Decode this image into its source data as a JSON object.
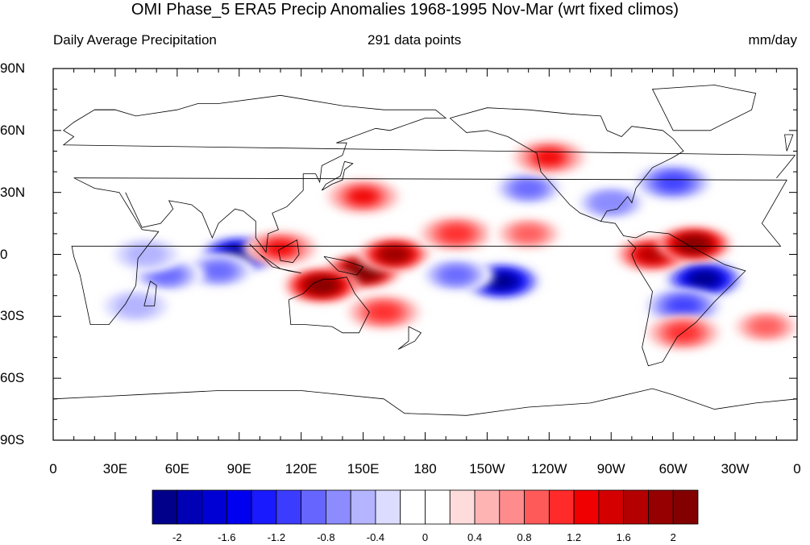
{
  "header": {
    "title": "OMI Phase_5 ERA5 Precip Anomalies 1968-1995 Nov-Mar (wrt fixed climos)",
    "left": "Daily Average Precipitation",
    "center": "291 data points",
    "right": "mm/day"
  },
  "map": {
    "projection": "cylindrical-equidistant",
    "center_longitude": 180,
    "lat_range": [
      -90,
      90
    ],
    "lon_range": [
      0,
      360
    ],
    "lat_labels": [
      "90N",
      "60N",
      "30N",
      "0",
      "30S",
      "60S",
      "90S"
    ],
    "lon_labels": [
      "0",
      "30E",
      "60E",
      "90E",
      "120E",
      "150E",
      "180",
      "150W",
      "120W",
      "90W",
      "60W",
      "30W",
      "0"
    ],
    "coastline_color": "#000000"
  },
  "colorbar": {
    "colors": [
      "#00008a",
      "#0000b4",
      "#0000d4",
      "#0000f0",
      "#1a1aff",
      "#3c3cff",
      "#6666ff",
      "#8c8cff",
      "#b4b4ff",
      "#dcdcff",
      "#ffffff",
      "#ffffff",
      "#ffdcdc",
      "#ffb4b4",
      "#ff8c8c",
      "#ff5a5a",
      "#ff2a2a",
      "#f00000",
      "#d40000",
      "#b40000",
      "#960000",
      "#820000"
    ],
    "tick_labels": [
      "-2",
      "-1.6",
      "-1.2",
      "-0.8",
      "-0.4",
      "0",
      "0.4",
      "0.8",
      "1.2",
      "1.6",
      "2"
    ]
  },
  "anomalies": {
    "description_units": "mm/day",
    "blobs": [
      {
        "lon": 90,
        "lat": 0,
        "value": -2.2
      },
      {
        "lon": 80,
        "lat": -8,
        "value": -1.0
      },
      {
        "lon": 55,
        "lat": -10,
        "value": -1.0
      },
      {
        "lon": 45,
        "lat": 0,
        "value": -0.6
      },
      {
        "lon": 40,
        "lat": -25,
        "value": -0.6
      },
      {
        "lon": 150,
        "lat": -8,
        "value": 2.4
      },
      {
        "lon": 130,
        "lat": -15,
        "value": 2.2
      },
      {
        "lon": 165,
        "lat": 0,
        "value": 1.8
      },
      {
        "lon": 110,
        "lat": 3,
        "value": 1.2
      },
      {
        "lon": 150,
        "lat": 28,
        "value": 1.2
      },
      {
        "lon": 160,
        "lat": -28,
        "value": 1.0
      },
      {
        "lon": 195,
        "lat": 10,
        "value": 1.0
      },
      {
        "lon": 230,
        "lat": 10,
        "value": 0.8
      },
      {
        "lon": 217,
        "lat": -13,
        "value": -2.2
      },
      {
        "lon": 195,
        "lat": -10,
        "value": -1.0
      },
      {
        "lon": 230,
        "lat": 32,
        "value": -1.0
      },
      {
        "lon": 270,
        "lat": 25,
        "value": -0.8
      },
      {
        "lon": 300,
        "lat": 35,
        "value": -1.2
      },
      {
        "lon": 315,
        "lat": -12,
        "value": -2.2
      },
      {
        "lon": 305,
        "lat": -25,
        "value": -1.2
      },
      {
        "lon": 290,
        "lat": 0,
        "value": 1.6
      },
      {
        "lon": 310,
        "lat": 5,
        "value": 2.0
      },
      {
        "lon": 305,
        "lat": -38,
        "value": 1.0
      },
      {
        "lon": 240,
        "lat": 47,
        "value": 1.2
      },
      {
        "lon": 345,
        "lat": -35,
        "value": 0.8
      }
    ]
  }
}
